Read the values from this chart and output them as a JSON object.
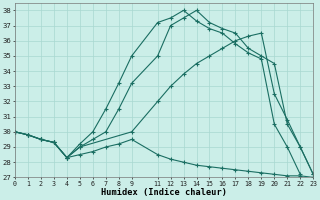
{
  "xlabel": "Humidex (Indice chaleur)",
  "bg_color": "#cbeee8",
  "grid_color": "#a8d8d0",
  "line_color": "#1a6e62",
  "xlim": [
    0,
    23
  ],
  "ylim": [
    27,
    38.5
  ],
  "yticks": [
    27,
    28,
    29,
    30,
    31,
    32,
    33,
    34,
    35,
    36,
    37,
    38
  ],
  "xtick_positions": [
    0,
    1,
    2,
    3,
    4,
    5,
    6,
    7,
    8,
    9,
    11,
    12,
    13,
    14,
    15,
    16,
    17,
    18,
    19,
    20,
    21,
    22,
    23
  ],
  "xtick_labels": [
    "0",
    "1",
    "2",
    "3",
    "4",
    "5",
    "6",
    "7",
    "8",
    "9",
    "11",
    "12",
    "13",
    "14",
    "15",
    "16",
    "17",
    "18",
    "19",
    "20",
    "21",
    "22",
    "23"
  ],
  "line1_x": [
    0,
    1,
    2,
    3,
    4,
    5,
    6,
    7,
    8,
    9,
    11,
    12,
    13,
    14,
    15,
    16,
    17,
    18,
    19,
    20,
    21,
    22,
    23
  ],
  "line1_y": [
    30,
    29.8,
    29.5,
    29.3,
    28.3,
    29.2,
    30.0,
    31.5,
    33.2,
    35.0,
    37.2,
    37.5,
    38.0,
    37.3,
    36.8,
    36.5,
    35.8,
    35.2,
    34.8,
    30.5,
    29.0,
    27.2,
    null
  ],
  "line2_x": [
    0,
    1,
    2,
    3,
    4,
    5,
    9,
    11,
    12,
    13,
    14,
    15,
    16,
    17,
    18,
    19,
    20,
    21,
    22,
    23
  ],
  "line2_y": [
    30,
    29.8,
    29.5,
    29.3,
    28.3,
    29.0,
    30.0,
    32.0,
    33.0,
    33.8,
    34.5,
    35.0,
    35.5,
    36.0,
    36.3,
    36.5,
    32.5,
    30.8,
    29.0,
    27.2
  ],
  "line3_x": [
    0,
    1,
    2,
    3,
    4,
    5,
    6,
    7,
    8,
    9,
    11,
    12,
    13,
    14,
    15,
    16,
    17,
    18,
    19,
    20,
    21,
    22,
    23
  ],
  "line3_y": [
    30,
    29.8,
    29.5,
    29.3,
    28.3,
    29.0,
    29.5,
    30.0,
    31.5,
    33.2,
    35.0,
    37.0,
    37.5,
    38.0,
    37.2,
    36.8,
    36.5,
    35.5,
    35.0,
    34.5,
    30.5,
    29.0,
    27.2
  ],
  "line4_x": [
    0,
    1,
    2,
    3,
    4,
    5,
    6,
    7,
    8,
    9,
    11,
    12,
    13,
    14,
    15,
    16,
    17,
    18,
    19,
    20,
    21,
    22,
    23
  ],
  "line4_y": [
    30,
    29.8,
    29.5,
    29.3,
    28.3,
    28.5,
    28.7,
    29.0,
    29.2,
    29.5,
    28.5,
    28.2,
    28.0,
    27.8,
    27.7,
    27.6,
    27.5,
    27.4,
    27.3,
    27.2,
    27.1,
    27.1,
    27.0
  ]
}
